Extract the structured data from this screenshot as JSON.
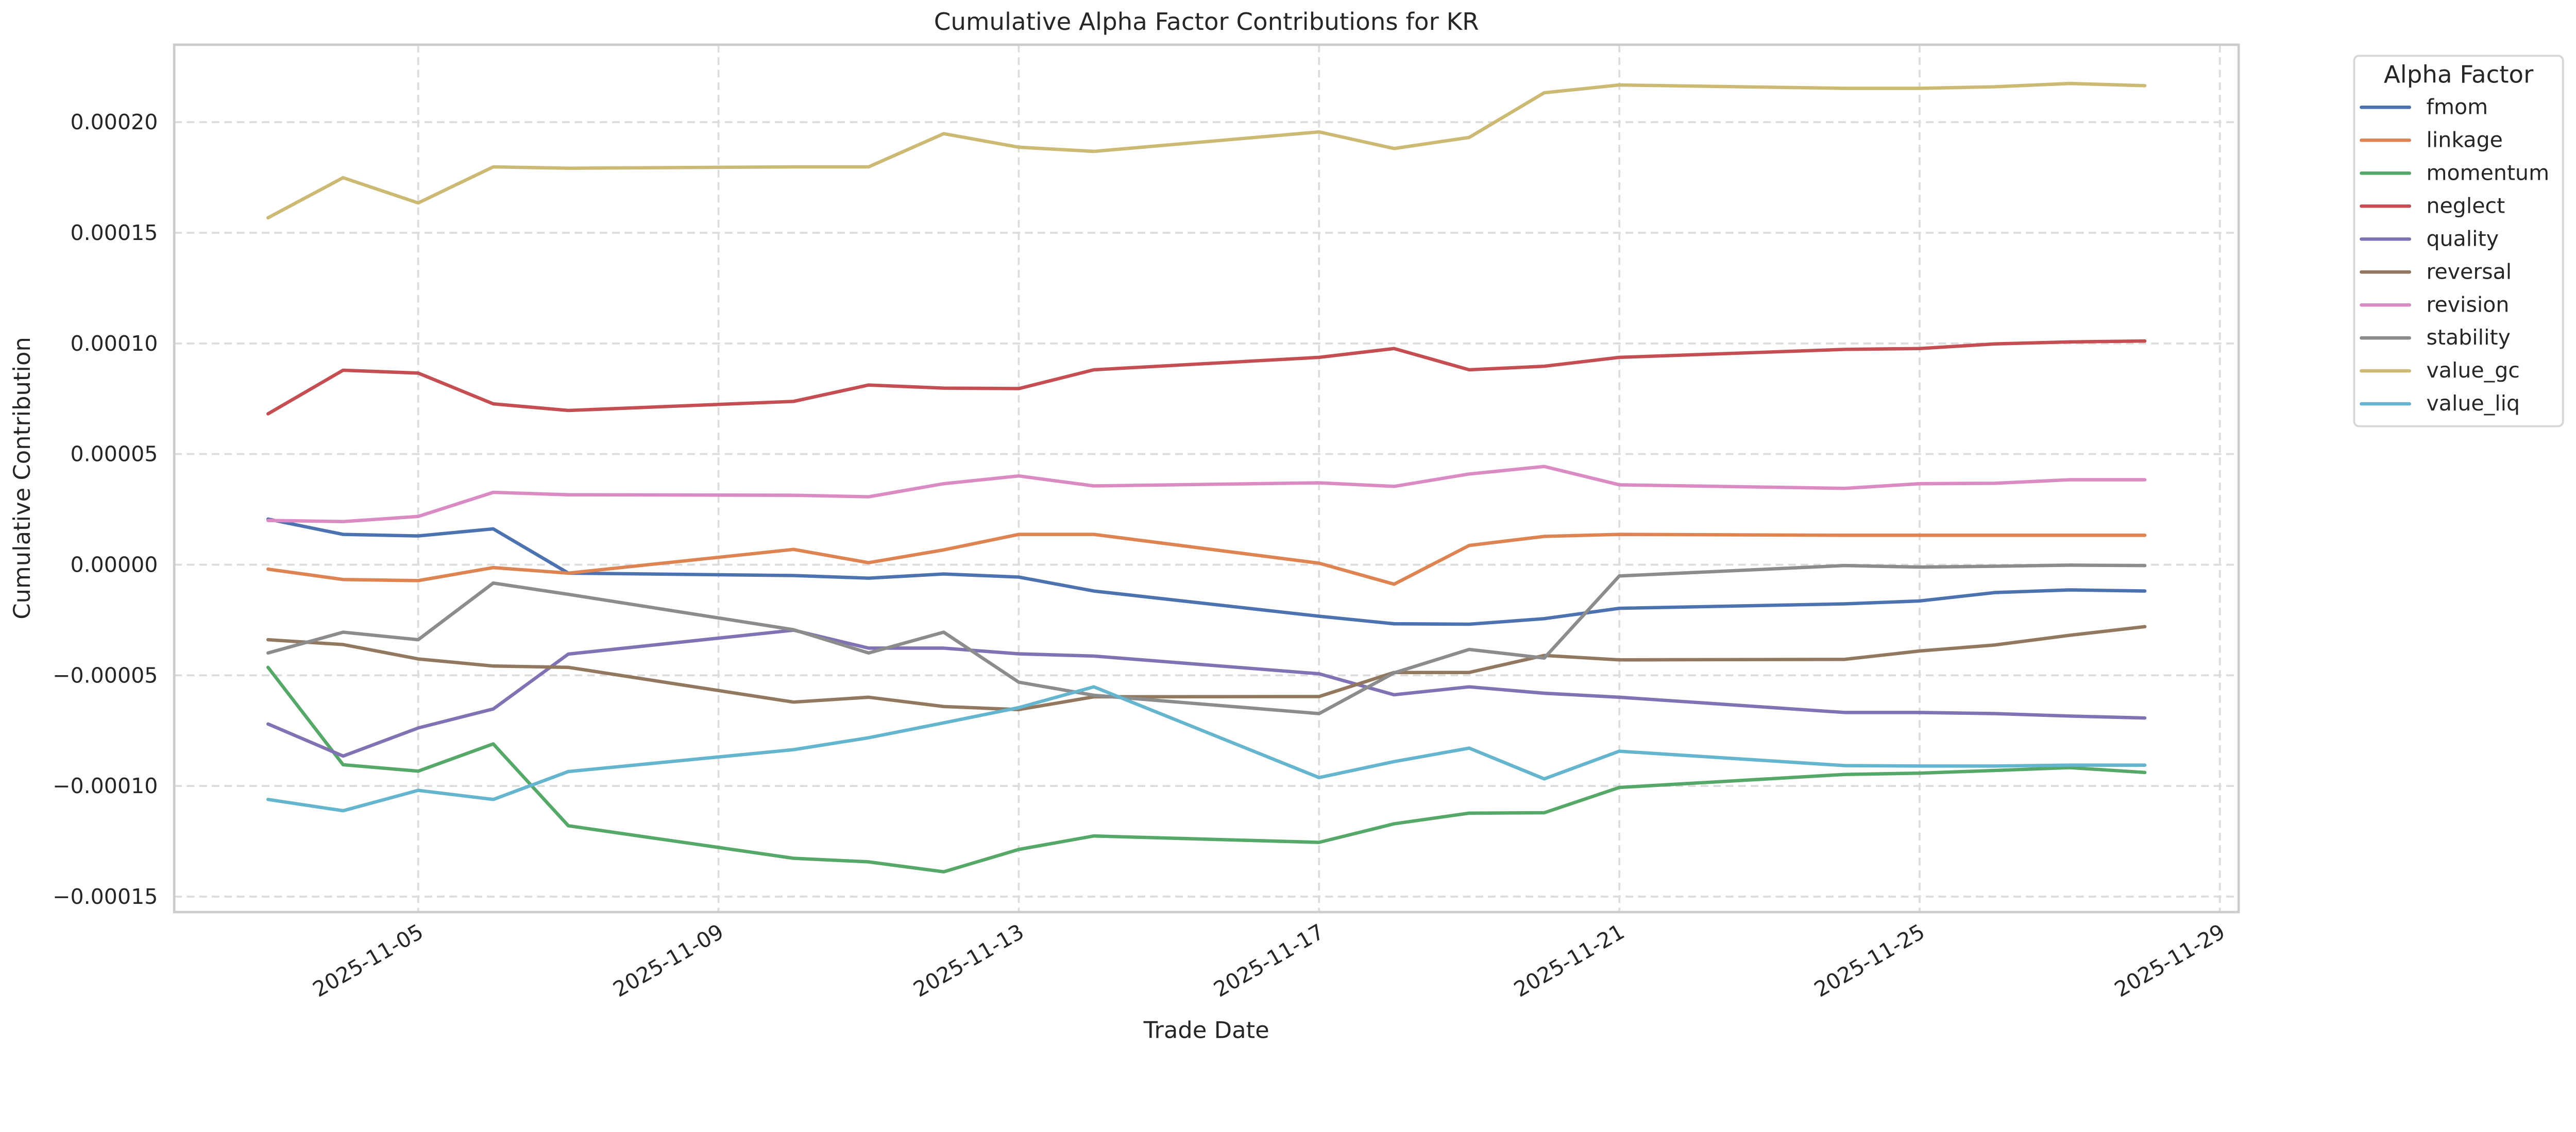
{
  "chart_data": {
    "type": "line",
    "title": "Cumulative Alpha Factor Contributions for KR",
    "xlabel": "Trade Date",
    "ylabel": "Cumulative Contribution",
    "ylim": [
      -0.000157,
      0.000235
    ],
    "xlim": [
      "2025-11-01T18:00",
      "2025-11-29T06:00"
    ],
    "grid": true,
    "yticks": [
      -0.00015,
      -0.0001,
      -5e-05,
      0,
      5e-05,
      0.0001,
      0.00015,
      0.0002
    ],
    "ytick_labels": [
      "−0.00015",
      "−0.00010",
      "−0.00005",
      "0.00000",
      "0.00005",
      "0.00010",
      "0.00015",
      "0.00020"
    ],
    "xticks": [
      "2025-11-05",
      "2025-11-09",
      "2025-11-13",
      "2025-11-17",
      "2025-11-21",
      "2025-11-25",
      "2025-11-29"
    ],
    "xtick_labels": [
      "2025-11-05",
      "2025-11-09",
      "2025-11-13",
      "2025-11-17",
      "2025-11-21",
      "2025-11-25",
      "2025-11-29"
    ],
    "legend": {
      "title": "Alpha Factor",
      "placement": "outside-top-right"
    },
    "x": [
      "2025-11-03",
      "2025-11-04",
      "2025-11-05",
      "2025-11-06",
      "2025-11-07",
      "2025-11-10",
      "2025-11-11",
      "2025-11-12",
      "2025-11-13",
      "2025-11-14",
      "2025-11-17",
      "2025-11-18",
      "2025-11-19",
      "2025-11-20",
      "2025-11-21",
      "2025-11-24",
      "2025-11-25",
      "2025-11-26",
      "2025-11-27",
      "2025-11-28"
    ],
    "series": [
      {
        "name": "fmom",
        "color": "#4c72b0",
        "values": [
          2.06e-05,
          1.37e-05,
          1.3e-05,
          1.62e-05,
          -3.8e-06,
          -4.9e-06,
          -6.1e-06,
          -4.2e-06,
          -5.6e-06,
          -1.19e-05,
          -2.33e-05,
          -2.67e-05,
          -2.69e-05,
          -2.44e-05,
          -1.97e-05,
          -1.77e-05,
          -1.64e-05,
          -1.26e-05,
          -1.14e-05,
          -1.19e-05
        ]
      },
      {
        "name": "linkage",
        "color": "#dd8452",
        "values": [
          -2e-06,
          -6.7e-06,
          -7.2e-06,
          -1.3e-06,
          -3.8e-06,
          6.9e-06,
          9e-07,
          6.7e-06,
          1.37e-05,
          1.37e-05,
          7e-07,
          -8.8e-06,
          8.7e-06,
          1.28e-05,
          1.37e-05,
          1.33e-05,
          1.33e-05,
          1.33e-05,
          1.33e-05,
          1.33e-05
        ]
      },
      {
        "name": "momentum",
        "color": "#55a868",
        "values": [
          -4.64e-05,
          -9.04e-05,
          -9.33e-05,
          -8.1e-05,
          -0.000118,
          -0.0001327,
          -0.0001343,
          -0.0001388,
          -0.0001287,
          -0.0001226,
          -0.0001255,
          -0.0001171,
          -0.0001123,
          -0.0001121,
          -0.0001007,
          -9.48e-05,
          -9.42e-05,
          -9.3e-05,
          -9.17e-05,
          -9.39e-05
        ]
      },
      {
        "name": "neglect",
        "color": "#c44e52",
        "values": [
          6.82e-05,
          8.79e-05,
          8.66e-05,
          7.27e-05,
          6.97e-05,
          7.38e-05,
          8.12e-05,
          7.98e-05,
          7.96e-05,
          8.81e-05,
          9.37e-05,
          9.77e-05,
          8.81e-05,
          8.97e-05,
          9.37e-05,
          9.73e-05,
          9.77e-05,
          9.98e-05,
          0.0001007,
          0.0001011
        ]
      },
      {
        "name": "quality",
        "color": "#8172b3",
        "values": [
          -7.2e-05,
          -8.65e-05,
          -7.38e-05,
          -6.52e-05,
          -4.04e-05,
          -2.96e-05,
          -3.77e-05,
          -3.77e-05,
          -4.03e-05,
          -4.13e-05,
          -4.93e-05,
          -5.88e-05,
          -5.52e-05,
          -5.81e-05,
          -5.99e-05,
          -6.68e-05,
          -6.68e-05,
          -6.73e-05,
          -6.84e-05,
          -6.93e-05
        ]
      },
      {
        "name": "reversal",
        "color": "#937860",
        "values": [
          -3.39e-05,
          -3.61e-05,
          -4.26e-05,
          -4.58e-05,
          -4.64e-05,
          -6.21e-05,
          -5.99e-05,
          -6.41e-05,
          -6.55e-05,
          -5.97e-05,
          -5.96e-05,
          -4.87e-05,
          -4.87e-05,
          -4.1e-05,
          -4.3e-05,
          -4.28e-05,
          -3.9e-05,
          -3.63e-05,
          -3.19e-05,
          -2.8e-05
        ]
      },
      {
        "name": "revision",
        "color": "#da8bc3",
        "values": [
          2e-05,
          1.95e-05,
          2.18e-05,
          3.27e-05,
          3.16e-05,
          3.14e-05,
          3.07e-05,
          3.66e-05,
          4.01e-05,
          3.56e-05,
          3.7e-05,
          3.54e-05,
          4.1e-05,
          4.44e-05,
          3.61e-05,
          3.45e-05,
          3.66e-05,
          3.68e-05,
          3.84e-05,
          3.84e-05
        ]
      },
      {
        "name": "stability",
        "color": "#8c8c8c",
        "values": [
          -3.99e-05,
          -3.05e-05,
          -3.39e-05,
          -8.3e-06,
          -1.34e-05,
          -2.94e-05,
          -3.99e-05,
          -3.05e-05,
          -5.31e-05,
          -5.9e-05,
          -6.73e-05,
          -4.89e-05,
          -3.83e-05,
          -4.22e-05,
          -5.1e-06,
          -4e-07,
          -1.1e-06,
          -7e-07,
          -2e-07,
          -4e-07
        ]
      },
      {
        "name": "value_gc",
        "color": "#ccb974",
        "values": [
          0.0001568,
          0.0001749,
          0.0001635,
          0.0001798,
          0.0001792,
          0.0001798,
          0.0001798,
          0.0001948,
          0.0001887,
          0.0001868,
          0.0001956,
          0.0001881,
          0.0001931,
          0.0002133,
          0.0002168,
          0.0002153,
          0.0002153,
          0.000216,
          0.0002175,
          0.0002165
        ]
      },
      {
        "name": "value_liq",
        "color": "#64b5cd",
        "values": [
          -0.0001061,
          -0.0001112,
          -0.000102,
          -0.0001061,
          -9.35e-05,
          -8.36e-05,
          -7.82e-05,
          -7.15e-05,
          -6.46e-05,
          -5.52e-05,
          -9.62e-05,
          -8.9e-05,
          -8.29e-05,
          -9.68e-05,
          -8.43e-05,
          -9.08e-05,
          -9.1e-05,
          -9.1e-05,
          -9.06e-05,
          -9.06e-05
        ]
      }
    ]
  }
}
